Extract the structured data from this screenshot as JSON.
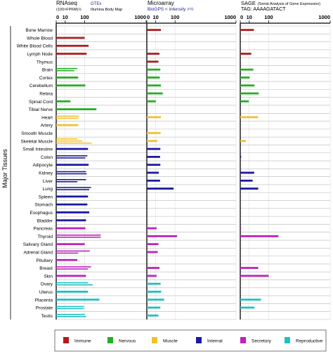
{
  "panels": [
    {
      "title": "RNAseq",
      "subtitle": "(100×FPKM)½",
      "source": "GTEx",
      "source_note": "Illumina Body Map"
    },
    {
      "title": "Microarray",
      "subtitle": "BioGPS  < intensity >½",
      "source": "",
      "source_note": ""
    },
    {
      "title": "SAGE",
      "subtitle": "(Serial Analysis of Gene Expression)",
      "source": "",
      "source_note": "TAG: AAAAGATACT"
    }
  ],
  "axis": {
    "ticks": [
      "0",
      "10",
      "100",
      "1000"
    ],
    "ylabel": "Major Tissues"
  },
  "legend": [
    {
      "label": "Immune",
      "color": "#b01c1c"
    },
    {
      "label": "Nervous",
      "color": "#22b022"
    },
    {
      "label": "Muscle",
      "color": "#f4c030"
    },
    {
      "label": "Internal",
      "color": "#1a1aa0"
    },
    {
      "label": "Secretory",
      "color": "#c020c0"
    },
    {
      "label": "Reproductive",
      "color": "#20c0c0"
    }
  ],
  "chart_data": {
    "type": "bar",
    "ylabel": "Major Tissues",
    "xscale": "sqrt",
    "xlim": [
      0,
      1000
    ],
    "categories": [
      "Bone Marrow",
      "Whole Blood",
      "White Blood Cells",
      "Lymph Node",
      "Thymus",
      "Brain",
      "Cortex",
      "Cerebellum",
      "Retina",
      "Spinal Cord",
      "Tibial Nerve",
      "Heart",
      "Artery",
      "Smooth Muscle",
      "Skeletal Muscle",
      "Small Intestine",
      "Colon",
      "Adipocyte",
      "Kidney",
      "Liver",
      "Lung",
      "Spleen",
      "Stomach",
      "Esophagus",
      "Bladder",
      "Pancreas",
      "Thyroid",
      "Salivary Gland",
      "Adrenal Gland",
      "Pituitary",
      "Breast",
      "Skin",
      "Ovary",
      "Uterus",
      "Placenta",
      "Prostate",
      "Testis"
    ],
    "groups": [
      "Immune",
      "Immune",
      "Immune",
      "Immune",
      "Immune",
      "Nervous",
      "Nervous",
      "Nervous",
      "Nervous",
      "Nervous",
      "Nervous",
      "Muscle",
      "Muscle",
      "Muscle",
      "Muscle",
      "Internal",
      "Internal",
      "Internal",
      "Internal",
      "Internal",
      "Internal",
      "Internal",
      "Internal",
      "Internal",
      "Internal",
      "Secretory",
      "Secretory",
      "Secretory",
      "Secretory",
      "Secretory",
      "Secretory",
      "Secretory",
      "Reproductive",
      "Reproductive",
      "Reproductive",
      "Reproductive",
      "Reproductive"
    ],
    "series": [
      {
        "name": "RNAseq",
        "bars": [
          [],
          [
            100
          ],
          [
            130
          ],
          [
            115
          ],
          [],
          [
            55,
            40
          ],
          [
            60
          ],
          [
            105
          ],
          [],
          [
            25
          ],
          [
            200
          ],
          [
            65,
            60
          ],
          [
            60
          ],
          [],
          [
            55,
            85,
            155
          ],
          [
            125
          ],
          [
            120,
            105
          ],
          [
            130
          ],
          [
            110,
            115
          ],
          [
            110,
            55
          ],
          [
            150,
            135
          ],
          [
            125
          ],
          [
            120
          ],
          [
            135
          ],
          [
            110
          ],
          [
            105
          ],
          [
            245,
            245
          ],
          [
            100
          ],
          [
            140,
            60
          ],
          [
            55
          ],
          [
            150,
            125
          ],
          [
            110
          ],
          [
            125,
            165
          ],
          [
            125
          ],
          [
            230
          ],
          [
            95,
            95
          ],
          [
            100,
            110
          ]
        ]
      },
      {
        "name": "Microarray",
        "bars": [
          [
            25
          ],
          [],
          [],
          [
            20
          ],
          [
            17
          ],
          [
            23
          ],
          [
            21
          ],
          [
            25
          ],
          [
            32
          ],
          [
            10
          ],
          [],
          [
            25
          ],
          [],
          [
            24
          ],
          [
            14
          ],
          [
            23
          ],
          [
            22
          ],
          [
            23
          ],
          [
            18
          ],
          [
            22
          ],
          [
            90
          ],
          [],
          [],
          [],
          [],
          [
            12
          ],
          [
            115
          ],
          [
            17
          ],
          [
            15
          ],
          [],
          [
            20
          ],
          [
            12
          ],
          [
            24
          ],
          [
            26
          ],
          [
            38
          ],
          [
            23
          ],
          [
            17
          ]
        ]
      },
      {
        "name": "SAGE",
        "bars": [
          [
            23
          ],
          [],
          [],
          [
            15
          ],
          [],
          [
            21
          ],
          [
            11
          ],
          [
            25
          ],
          [
            42
          ],
          [
            9
          ],
          [],
          [
            40
          ],
          [],
          [],
          [
            4
          ],
          [],
          [
            0.1
          ],
          [],
          [
            24
          ],
          [
            19
          ],
          [
            40
          ],
          [],
          [],
          [],
          [],
          [
            0.1
          ],
          [
            180
          ],
          [],
          [],
          [],
          [
            40
          ],
          [
            100
          ],
          [],
          [],
          [
            53
          ],
          [
            25
          ],
          []
        ]
      }
    ]
  }
}
